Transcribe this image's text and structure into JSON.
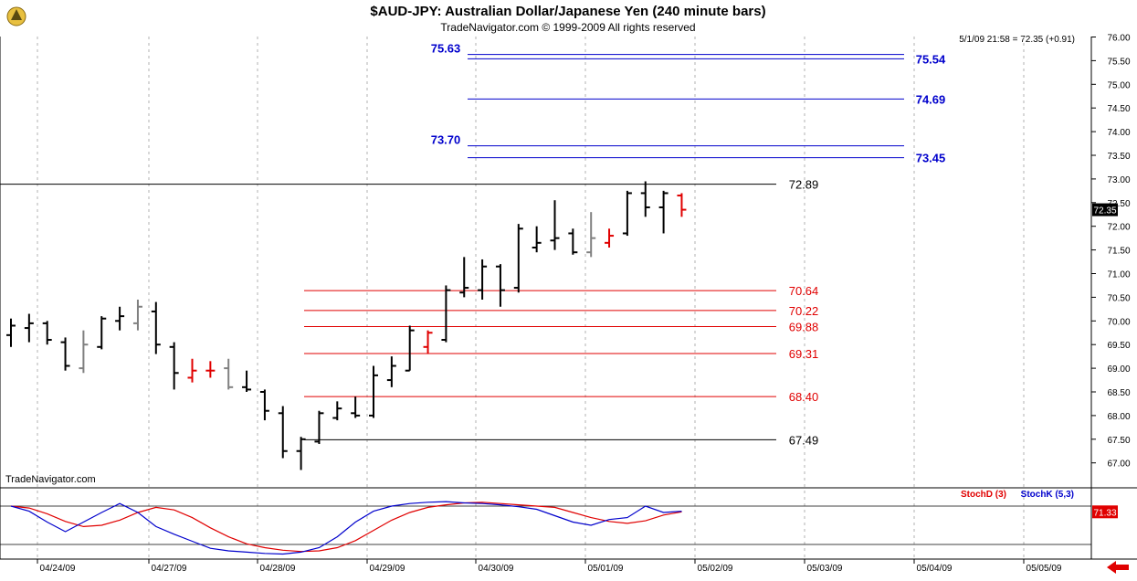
{
  "header": {
    "title": "$AUD-JPY:  Australian Dollar/Japanese Yen  (240 minute bars)",
    "copyright": "TradeNavigator.com © 1999-2009 All rights reserved",
    "quote": "5/1/09 21:58 = 72.35 (+0.91)",
    "watermark": "TradeNavigator.com",
    "logo_icon": "trade-navigator-logo-icon"
  },
  "colors": {
    "up_bar": "#000000",
    "neutral_bar": "#808080",
    "highlight_bar": "#e00000",
    "support_line": "#e00000",
    "target_line": "#0000cc",
    "stoch_d": "#e00000",
    "stoch_k": "#0000cc"
  },
  "chart_data": [
    {
      "type": "ohlc",
      "title": "$AUD-JPY:  Australian Dollar/Japanese Yen  (240 minute bars)",
      "ylim": [
        66.5,
        76.1
      ],
      "y_ticks": [
        "76.00",
        "75.50",
        "75.00",
        "74.50",
        "74.00",
        "73.50",
        "73.00",
        "72.50",
        "72.00",
        "71.50",
        "71.00",
        "70.50",
        "70.00",
        "69.50",
        "69.00",
        "68.50",
        "68.00",
        "67.50",
        "67.00"
      ],
      "x_ticks": [
        "04/24/09",
        "04/27/09",
        "04/28/09",
        "04/29/09",
        "04/30/09",
        "05/01/09",
        "05/02/09",
        "05/03/09",
        "05/04/09",
        "05/05/09"
      ],
      "last_price_label": "72.35",
      "bars": [
        {
          "o": 69.7,
          "h": 70.05,
          "l": 69.45,
          "c": 69.9,
          "color": "black"
        },
        {
          "o": 69.85,
          "h": 70.15,
          "l": 69.55,
          "c": 69.95,
          "color": "black"
        },
        {
          "o": 69.95,
          "h": 70.0,
          "l": 69.5,
          "c": 69.6,
          "color": "black"
        },
        {
          "o": 69.55,
          "h": 69.65,
          "l": 68.95,
          "c": 69.05,
          "color": "black"
        },
        {
          "o": 69.0,
          "h": 69.8,
          "l": 68.9,
          "c": 69.5,
          "color": "gray"
        },
        {
          "o": 69.45,
          "h": 70.1,
          "l": 69.4,
          "c": 70.05,
          "color": "black"
        },
        {
          "o": 70.0,
          "h": 70.3,
          "l": 69.8,
          "c": 70.1,
          "color": "black"
        },
        {
          "o": 69.95,
          "h": 70.45,
          "l": 69.8,
          "c": 70.3,
          "color": "gray"
        },
        {
          "o": 70.2,
          "h": 70.4,
          "l": 69.3,
          "c": 69.5,
          "color": "black"
        },
        {
          "o": 69.45,
          "h": 69.55,
          "l": 68.55,
          "c": 68.9,
          "color": "black"
        },
        {
          "o": 68.8,
          "h": 69.2,
          "l": 68.7,
          "c": 68.95,
          "color": "red"
        },
        {
          "o": 68.95,
          "h": 69.15,
          "l": 68.8,
          "c": 68.95,
          "color": "red"
        },
        {
          "o": 69.0,
          "h": 69.2,
          "l": 68.55,
          "c": 68.6,
          "color": "gray"
        },
        {
          "o": 68.6,
          "h": 68.95,
          "l": 68.5,
          "c": 68.55,
          "color": "black"
        },
        {
          "o": 68.5,
          "h": 68.55,
          "l": 67.9,
          "c": 68.1,
          "color": "black"
        },
        {
          "o": 68.05,
          "h": 68.2,
          "l": 67.1,
          "c": 67.25,
          "color": "black"
        },
        {
          "o": 67.25,
          "h": 67.55,
          "l": 66.85,
          "c": 67.5,
          "color": "black"
        },
        {
          "o": 67.45,
          "h": 68.1,
          "l": 67.4,
          "c": 68.05,
          "color": "black"
        },
        {
          "o": 67.95,
          "h": 68.3,
          "l": 67.9,
          "c": 68.15,
          "color": "black"
        },
        {
          "o": 68.05,
          "h": 68.4,
          "l": 67.95,
          "c": 68.0,
          "color": "black"
        },
        {
          "o": 68.0,
          "h": 69.05,
          "l": 67.95,
          "c": 68.85,
          "color": "black"
        },
        {
          "o": 68.75,
          "h": 69.25,
          "l": 68.6,
          "c": 69.05,
          "color": "black"
        },
        {
          "o": 68.95,
          "h": 69.9,
          "l": 68.95,
          "c": 69.8,
          "color": "black"
        },
        {
          "o": 69.45,
          "h": 69.8,
          "l": 69.3,
          "c": 69.75,
          "color": "red"
        },
        {
          "o": 69.6,
          "h": 70.75,
          "l": 69.55,
          "c": 70.65,
          "color": "black"
        },
        {
          "o": 70.6,
          "h": 71.35,
          "l": 70.5,
          "c": 70.7,
          "color": "black"
        },
        {
          "o": 70.65,
          "h": 71.3,
          "l": 70.45,
          "c": 71.15,
          "color": "black"
        },
        {
          "o": 71.15,
          "h": 71.2,
          "l": 70.3,
          "c": 70.65,
          "color": "black"
        },
        {
          "o": 70.7,
          "h": 72.05,
          "l": 70.6,
          "c": 71.95,
          "color": "black"
        },
        {
          "o": 71.55,
          "h": 72.0,
          "l": 71.45,
          "c": 71.65,
          "color": "black"
        },
        {
          "o": 71.7,
          "h": 72.55,
          "l": 71.5,
          "c": 71.75,
          "color": "black"
        },
        {
          "o": 71.85,
          "h": 71.95,
          "l": 71.4,
          "c": 71.45,
          "color": "black"
        },
        {
          "o": 71.45,
          "h": 72.3,
          "l": 71.35,
          "c": 71.75,
          "color": "gray"
        },
        {
          "o": 71.65,
          "h": 71.95,
          "l": 71.55,
          "c": 71.8,
          "color": "red"
        },
        {
          "o": 71.85,
          "h": 72.75,
          "l": 71.8,
          "c": 72.7,
          "color": "black"
        },
        {
          "o": 72.7,
          "h": 72.95,
          "l": 72.2,
          "c": 72.4,
          "color": "black"
        },
        {
          "o": 72.4,
          "h": 72.75,
          "l": 71.85,
          "c": 72.7,
          "color": "black"
        },
        {
          "o": 72.65,
          "h": 72.7,
          "l": 72.2,
          "c": 72.35,
          "color": "red"
        }
      ],
      "levels": [
        {
          "value": 72.89,
          "label": "72.89",
          "color": "black",
          "side": "right"
        },
        {
          "value": 67.49,
          "label": "67.49",
          "color": "black",
          "side": "right"
        },
        {
          "value": 70.64,
          "label": "70.64",
          "color": "red",
          "side": "right"
        },
        {
          "value": 70.22,
          "label": "70.22",
          "color": "red",
          "side": "right"
        },
        {
          "value": 69.88,
          "label": "69.88",
          "color": "red",
          "side": "right"
        },
        {
          "value": 69.31,
          "label": "69.31",
          "color": "red",
          "side": "right"
        },
        {
          "value": 68.4,
          "label": "68.40",
          "color": "red",
          "side": "right"
        },
        {
          "value": 75.63,
          "label": "75.63",
          "color": "blue",
          "side": "left"
        },
        {
          "value": 75.54,
          "label": "75.54",
          "color": "blue",
          "side": "right"
        },
        {
          "value": 74.69,
          "label": "74.69",
          "color": "blue",
          "side": "right"
        },
        {
          "value": 73.7,
          "label": "73.70",
          "color": "blue",
          "side": "left"
        },
        {
          "value": 73.45,
          "label": "73.45",
          "color": "blue",
          "side": "right"
        }
      ]
    },
    {
      "type": "line",
      "legend": [
        "StochD (3)",
        "StochK (5,3)"
      ],
      "last_value_label": "71.33",
      "ylim": [
        0,
        100
      ],
      "reference_lines": [
        80,
        20
      ],
      "series": [
        {
          "name": "StochD (3)",
          "values": [
            80,
            77,
            68,
            56,
            48,
            50,
            58,
            70,
            78,
            74,
            62,
            46,
            32,
            21,
            15,
            11,
            9,
            10,
            15,
            26,
            42,
            58,
            70,
            78,
            82,
            85,
            86,
            84,
            82,
            80,
            78,
            70,
            62,
            56,
            53,
            57,
            66,
            71
          ]
        },
        {
          "name": "StochK (5,3)",
          "values": [
            80,
            72,
            55,
            40,
            55,
            70,
            84,
            70,
            48,
            36,
            25,
            14,
            10,
            8,
            6,
            5,
            8,
            15,
            32,
            55,
            72,
            80,
            84,
            86,
            87,
            85,
            84,
            82,
            79,
            75,
            65,
            55,
            50,
            59,
            62,
            80,
            70,
            72
          ]
        }
      ]
    }
  ]
}
